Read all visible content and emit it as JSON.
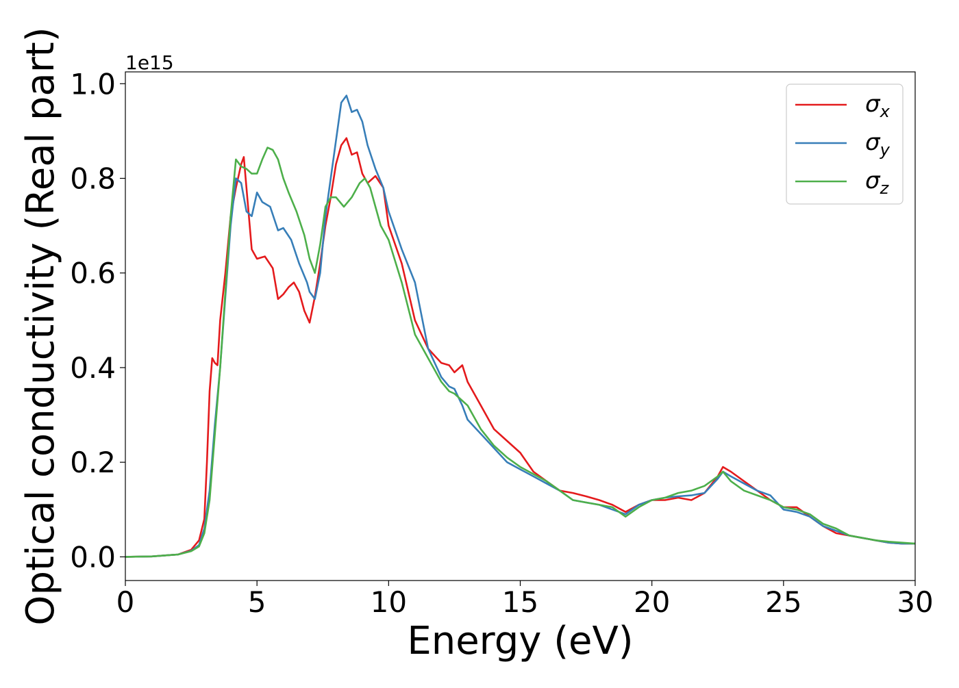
{
  "chart_data": {
    "type": "line",
    "xlabel": "Energy (eV)",
    "ylabel": "Optical conductivity (Real part)",
    "y_offset_label": "1e15",
    "xlim": [
      0,
      30
    ],
    "ylim": [
      -0.05,
      1.025
    ],
    "y_scale": 1000000000000000.0,
    "xticks": [
      0,
      5,
      10,
      15,
      20,
      25,
      30
    ],
    "xtick_labels": [
      "0",
      "5",
      "10",
      "15",
      "20",
      "25",
      "30"
    ],
    "yticks": [
      0.0,
      0.2,
      0.4,
      0.6,
      0.8,
      1.0
    ],
    "ytick_labels": [
      "0.0",
      "0.2",
      "0.4",
      "0.6",
      "0.8",
      "1.0"
    ],
    "grid": false,
    "legend_position": "top-right",
    "series": [
      {
        "name": "σ",
        "subscript": "x",
        "color": "#e41a1c",
        "x": [
          0,
          1,
          2,
          2.5,
          2.8,
          3.0,
          3.1,
          3.2,
          3.3,
          3.4,
          3.5,
          3.6,
          3.8,
          4.0,
          4.2,
          4.4,
          4.5,
          4.6,
          4.8,
          5.0,
          5.3,
          5.6,
          5.8,
          6.0,
          6.2,
          6.4,
          6.6,
          6.8,
          7.0,
          7.2,
          7.4,
          7.6,
          7.8,
          8.0,
          8.2,
          8.4,
          8.6,
          8.8,
          9.0,
          9.2,
          9.5,
          9.8,
          10.0,
          10.5,
          11.0,
          11.5,
          12.0,
          12.3,
          12.5,
          12.8,
          13.0,
          13.5,
          14.0,
          14.5,
          15.0,
          15.5,
          16.0,
          16.5,
          17.0,
          17.5,
          18.0,
          18.5,
          19.0,
          19.5,
          20.0,
          20.5,
          21.0,
          21.5,
          22.0,
          22.5,
          22.7,
          23.0,
          23.5,
          24.0,
          24.5,
          25.0,
          25.5,
          26.0,
          26.5,
          27.0,
          27.5,
          28.0,
          28.5,
          29.0,
          29.5,
          30.0
        ],
        "y": [
          0,
          0.001,
          0.005,
          0.015,
          0.035,
          0.08,
          0.2,
          0.35,
          0.42,
          0.41,
          0.405,
          0.5,
          0.6,
          0.72,
          0.78,
          0.83,
          0.845,
          0.78,
          0.65,
          0.63,
          0.635,
          0.61,
          0.545,
          0.555,
          0.57,
          0.58,
          0.56,
          0.52,
          0.495,
          0.55,
          0.62,
          0.7,
          0.76,
          0.83,
          0.87,
          0.885,
          0.85,
          0.855,
          0.81,
          0.79,
          0.805,
          0.78,
          0.7,
          0.62,
          0.5,
          0.44,
          0.41,
          0.405,
          0.39,
          0.405,
          0.37,
          0.32,
          0.27,
          0.245,
          0.22,
          0.18,
          0.16,
          0.14,
          0.135,
          0.128,
          0.12,
          0.11,
          0.095,
          0.11,
          0.12,
          0.12,
          0.125,
          0.12,
          0.135,
          0.17,
          0.19,
          0.18,
          0.16,
          0.14,
          0.12,
          0.105,
          0.105,
          0.085,
          0.065,
          0.05,
          0.045,
          0.04,
          0.035,
          0.03,
          0.028,
          0.028
        ]
      },
      {
        "name": "σ",
        "subscript": "y",
        "color": "#377eb8",
        "x": [
          0,
          1,
          2,
          2.5,
          2.8,
          3.0,
          3.2,
          3.4,
          3.6,
          3.8,
          4.0,
          4.2,
          4.4,
          4.6,
          4.8,
          5.0,
          5.2,
          5.5,
          5.8,
          6.0,
          6.3,
          6.6,
          6.9,
          7.0,
          7.2,
          7.4,
          7.6,
          7.8,
          8.0,
          8.2,
          8.4,
          8.6,
          8.8,
          9.0,
          9.2,
          9.5,
          9.8,
          10.0,
          10.5,
          11.0,
          11.5,
          12.0,
          12.3,
          12.5,
          12.8,
          13.0,
          13.5,
          14.0,
          14.5,
          15.0,
          15.5,
          16.0,
          16.5,
          17.0,
          17.5,
          18.0,
          18.5,
          19.0,
          19.5,
          20.0,
          20.5,
          21.0,
          21.5,
          22.0,
          22.5,
          22.7,
          23.0,
          23.5,
          24.0,
          24.5,
          25.0,
          25.5,
          26.0,
          26.5,
          27.0,
          27.5,
          28.0,
          28.5,
          29.0,
          29.5,
          30.0
        ],
        "y": [
          0,
          0.001,
          0.005,
          0.013,
          0.025,
          0.06,
          0.14,
          0.28,
          0.4,
          0.55,
          0.7,
          0.8,
          0.79,
          0.73,
          0.72,
          0.77,
          0.75,
          0.74,
          0.69,
          0.695,
          0.67,
          0.62,
          0.58,
          0.56,
          0.545,
          0.6,
          0.72,
          0.8,
          0.88,
          0.96,
          0.975,
          0.94,
          0.945,
          0.92,
          0.87,
          0.82,
          0.78,
          0.73,
          0.65,
          0.58,
          0.44,
          0.38,
          0.36,
          0.355,
          0.32,
          0.29,
          0.26,
          0.23,
          0.2,
          0.185,
          0.17,
          0.155,
          0.14,
          0.12,
          0.115,
          0.11,
          0.1,
          0.09,
          0.11,
          0.12,
          0.125,
          0.128,
          0.13,
          0.135,
          0.165,
          0.18,
          0.17,
          0.155,
          0.14,
          0.13,
          0.1,
          0.095,
          0.085,
          0.065,
          0.055,
          0.045,
          0.04,
          0.035,
          0.03,
          0.028,
          0.028
        ]
      },
      {
        "name": "σ",
        "subscript": "z",
        "color": "#4daf4a",
        "x": [
          0,
          1,
          2,
          2.5,
          2.8,
          3.0,
          3.2,
          3.4,
          3.6,
          3.8,
          4.0,
          4.2,
          4.4,
          4.6,
          4.8,
          5.0,
          5.2,
          5.4,
          5.6,
          5.8,
          6.0,
          6.2,
          6.5,
          6.8,
          7.0,
          7.2,
          7.4,
          7.6,
          7.8,
          8.0,
          8.3,
          8.6,
          8.9,
          9.1,
          9.3,
          9.5,
          9.7,
          10.0,
          10.5,
          11.0,
          11.5,
          12.0,
          12.3,
          12.5,
          12.8,
          13.0,
          13.5,
          14.0,
          14.5,
          15.0,
          15.5,
          16.0,
          16.5,
          17.0,
          17.5,
          18.0,
          18.5,
          19.0,
          19.5,
          20.0,
          20.5,
          21.0,
          21.5,
          22.0,
          22.5,
          22.7,
          23.0,
          23.5,
          24.0,
          24.5,
          25.0,
          25.5,
          26.0,
          26.5,
          27.0,
          27.5,
          28.0,
          28.5,
          29.0,
          29.5,
          30.0
        ],
        "y": [
          0,
          0.001,
          0.005,
          0.012,
          0.022,
          0.05,
          0.12,
          0.26,
          0.4,
          0.56,
          0.72,
          0.84,
          0.825,
          0.82,
          0.81,
          0.81,
          0.84,
          0.865,
          0.86,
          0.84,
          0.8,
          0.77,
          0.73,
          0.68,
          0.63,
          0.6,
          0.66,
          0.74,
          0.76,
          0.76,
          0.74,
          0.76,
          0.79,
          0.8,
          0.78,
          0.74,
          0.7,
          0.67,
          0.58,
          0.47,
          0.42,
          0.37,
          0.35,
          0.345,
          0.33,
          0.32,
          0.27,
          0.235,
          0.21,
          0.19,
          0.175,
          0.16,
          0.14,
          0.12,
          0.115,
          0.11,
          0.105,
          0.085,
          0.105,
          0.12,
          0.125,
          0.135,
          0.14,
          0.15,
          0.17,
          0.18,
          0.16,
          0.14,
          0.13,
          0.12,
          0.105,
          0.1,
          0.09,
          0.07,
          0.06,
          0.045,
          0.04,
          0.035,
          0.032,
          0.03,
          0.028
        ]
      }
    ]
  }
}
